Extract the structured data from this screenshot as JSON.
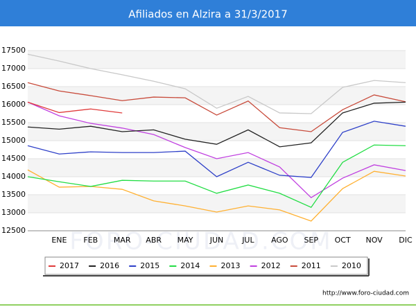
{
  "chart_data": {
    "type": "line",
    "title": "Afiliados en Alzira a 31/3/2017",
    "categories": [
      null,
      "ENE",
      "FEB",
      "MAR",
      "ABR",
      "MAY",
      "JUN",
      "JUL",
      "AGO",
      "SEP",
      "OCT",
      "NOV",
      "DIC"
    ],
    "series": [
      {
        "name": "2017",
        "color": "#e03a3a",
        "values": [
          16070,
          15780,
          15880,
          15770,
          null,
          null,
          null,
          null,
          null,
          null,
          null,
          null,
          null
        ]
      },
      {
        "name": "2016",
        "color": "#222222",
        "values": [
          15380,
          15320,
          15400,
          15250,
          15300,
          15040,
          14900,
          15300,
          14830,
          14940,
          15770,
          16040,
          16070
        ]
      },
      {
        "name": "2015",
        "color": "#2d3fc8",
        "values": [
          14860,
          14630,
          14690,
          14670,
          14670,
          14710,
          14000,
          14400,
          14040,
          13980,
          15230,
          15540,
          15400
        ]
      },
      {
        "name": "2014",
        "color": "#22dd44",
        "values": [
          14000,
          13860,
          13730,
          13900,
          13880,
          13880,
          13540,
          13770,
          13540,
          13150,
          14400,
          14880,
          14860
        ]
      },
      {
        "name": "2013",
        "color": "#ffb030",
        "values": [
          14190,
          13710,
          13730,
          13650,
          13330,
          13190,
          13020,
          13190,
          13080,
          12770,
          13670,
          14150,
          14020
        ]
      },
      {
        "name": "2012",
        "color": "#c040e0",
        "values": [
          16070,
          15690,
          15480,
          15350,
          15170,
          14810,
          14500,
          14670,
          14270,
          13420,
          13960,
          14330,
          14170
        ]
      },
      {
        "name": "2011",
        "color": "#c84a3a",
        "values": [
          16610,
          16380,
          16250,
          16110,
          16210,
          16190,
          15710,
          16100,
          15360,
          15250,
          15860,
          16270,
          16080
        ]
      },
      {
        "name": "2010",
        "color": "#c8c8c8",
        "values": [
          17400,
          17210,
          17000,
          16830,
          16650,
          16440,
          15900,
          16230,
          15770,
          15750,
          16480,
          16670,
          16610
        ]
      }
    ],
    "ylim": [
      12500,
      17500
    ],
    "yticks": [
      12500,
      13000,
      13500,
      14000,
      14500,
      15000,
      15500,
      16000,
      16500,
      17000,
      17500
    ],
    "grid": true,
    "watermark": "FORO-CIUDAD.COM",
    "footer": "http://www.foro-ciudad.com"
  }
}
